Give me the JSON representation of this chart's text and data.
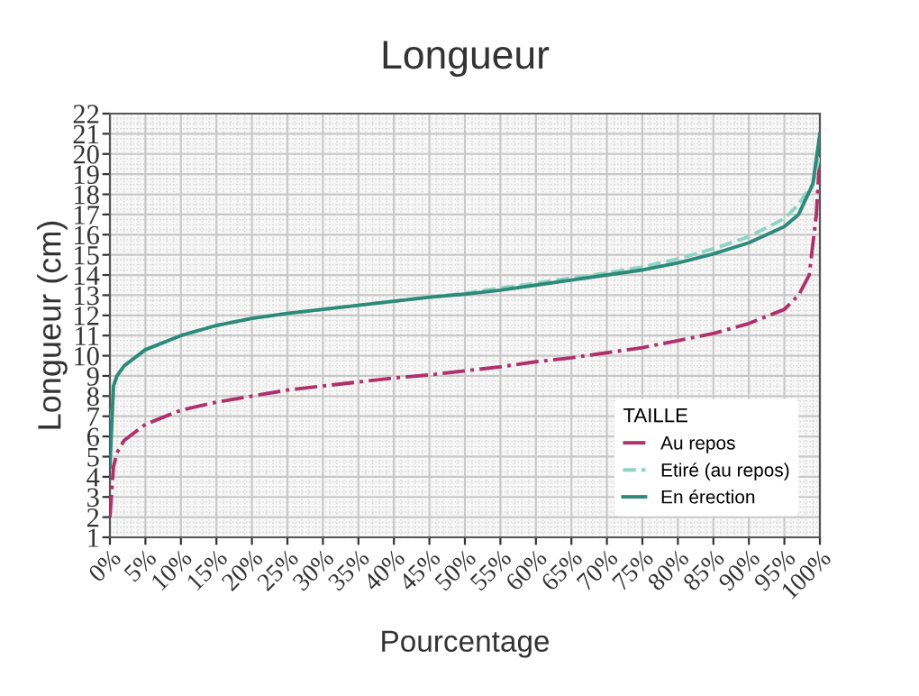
{
  "chart_data": {
    "type": "line",
    "title": "Longueur",
    "xlabel": "Pourcentage",
    "ylabel": "Longueur (cm)",
    "legend_title": "TAILLE",
    "series": [
      {
        "name": "Au repos",
        "color": "#b0306a",
        "line_style": "dashdot",
        "x": [
          0,
          0.5,
          1,
          2,
          5,
          10,
          15,
          20,
          25,
          30,
          35,
          40,
          45,
          50,
          55,
          60,
          65,
          70,
          75,
          80,
          85,
          90,
          95,
          97,
          98.5,
          99.5,
          100
        ],
        "values": [
          2,
          4.5,
          5.2,
          5.8,
          6.6,
          7.3,
          7.7,
          8.0,
          8.3,
          8.5,
          8.7,
          8.9,
          9.05,
          9.25,
          9.45,
          9.7,
          9.9,
          10.15,
          10.4,
          10.75,
          11.1,
          11.6,
          12.3,
          13,
          14,
          17,
          20
        ]
      },
      {
        "name": "Etiré (au repos)",
        "color": "#8fd4c4",
        "line_style": "dashed",
        "x": [
          0,
          0.5,
          1,
          2,
          5,
          10,
          15,
          20,
          25,
          30,
          35,
          40,
          45,
          50,
          55,
          60,
          65,
          70,
          75,
          80,
          85,
          90,
          95,
          97,
          99,
          100
        ],
        "values": [
          5,
          8.5,
          9.0,
          9.5,
          10.3,
          11.0,
          11.5,
          11.85,
          12.1,
          12.3,
          12.5,
          12.7,
          12.9,
          13.1,
          13.35,
          13.6,
          13.85,
          14.1,
          14.4,
          14.8,
          15.3,
          15.9,
          16.8,
          17.5,
          18.5,
          20
        ]
      },
      {
        "name": "En érection",
        "color": "#2e8a78",
        "line_style": "solid",
        "x": [
          0,
          0.5,
          1,
          2,
          5,
          10,
          15,
          20,
          25,
          30,
          35,
          40,
          45,
          50,
          55,
          60,
          65,
          70,
          75,
          80,
          85,
          90,
          95,
          97,
          99,
          100
        ],
        "values": [
          4.5,
          8.5,
          9.0,
          9.5,
          10.3,
          11.0,
          11.5,
          11.85,
          12.1,
          12.3,
          12.5,
          12.7,
          12.9,
          13.05,
          13.25,
          13.5,
          13.75,
          14.0,
          14.25,
          14.6,
          15.05,
          15.6,
          16.4,
          17.0,
          18.5,
          21
        ]
      }
    ],
    "xlim": [
      0,
      100
    ],
    "xticks": [
      {
        "value": 0,
        "label": "0%"
      },
      {
        "value": 5,
        "label": "5%"
      },
      {
        "value": 10,
        "label": "10%"
      },
      {
        "value": 15,
        "label": "15%"
      },
      {
        "value": 20,
        "label": "20%"
      },
      {
        "value": 25,
        "label": "25%"
      },
      {
        "value": 30,
        "label": "30%"
      },
      {
        "value": 35,
        "label": "35%"
      },
      {
        "value": 40,
        "label": "40%"
      },
      {
        "value": 45,
        "label": "45%"
      },
      {
        "value": 50,
        "label": "50%"
      },
      {
        "value": 55,
        "label": "55%"
      },
      {
        "value": 60,
        "label": "60%"
      },
      {
        "value": 65,
        "label": "65%"
      },
      {
        "value": 70,
        "label": "70%"
      },
      {
        "value": 75,
        "label": "75%"
      },
      {
        "value": 80,
        "label": "80%"
      },
      {
        "value": 85,
        "label": "85%"
      },
      {
        "value": 90,
        "label": "90%"
      },
      {
        "value": 95,
        "label": "95%"
      },
      {
        "value": 100,
        "label": "100%"
      }
    ],
    "ylim": [
      1,
      22
    ],
    "yticks": [
      1,
      2,
      3,
      4,
      5,
      6,
      7,
      8,
      9,
      10,
      11,
      12,
      13,
      14,
      15,
      16,
      17,
      18,
      19,
      20,
      21,
      22
    ],
    "grid": true,
    "legend": "lower right",
    "marker": "none"
  }
}
